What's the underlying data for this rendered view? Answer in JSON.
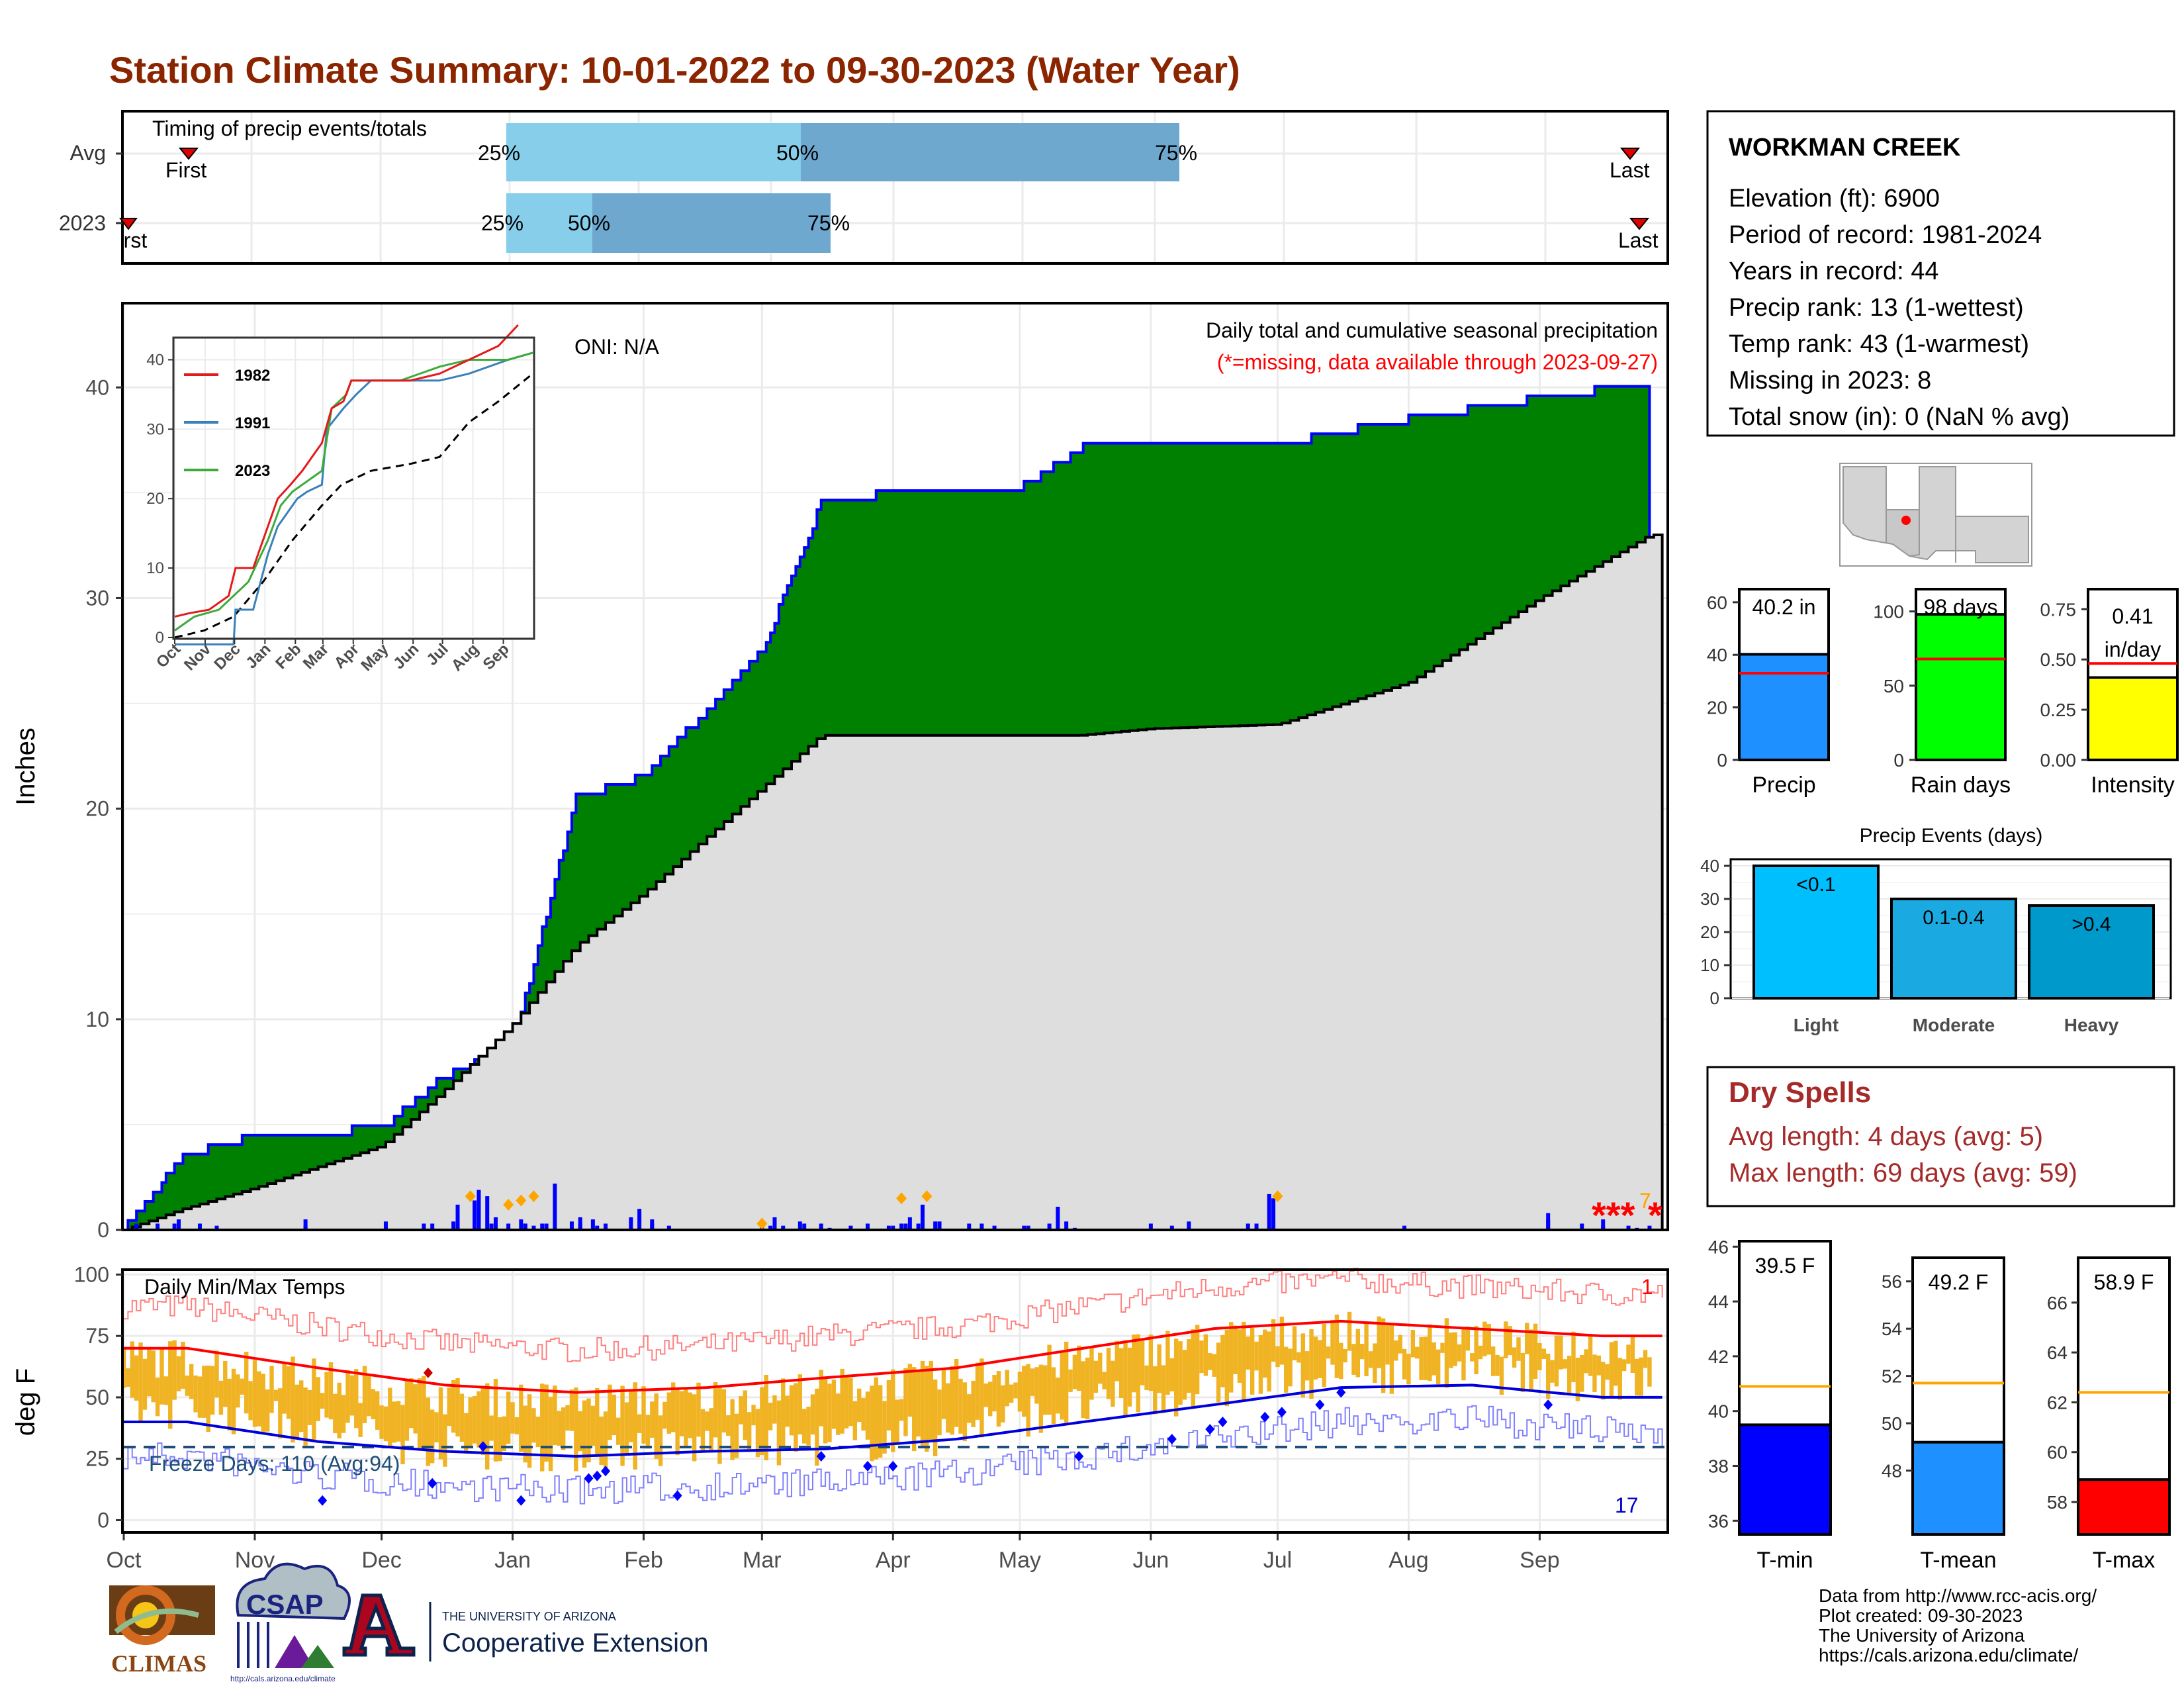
{
  "title": "Station Climate Summary: 10-01-2022 to 09-30-2023 (Water Year)",
  "timing": {
    "label": "Timing of precip events/totals",
    "rows": [
      {
        "name": "Avg",
        "p25": "25%",
        "p50": "50%",
        "p75": "75%",
        "first": "First",
        "last": "Last"
      },
      {
        "name": "2023",
        "p25": "25%",
        "p50": "50%",
        "p75": "75%",
        "first": "First",
        "last": "Last"
      }
    ]
  },
  "station": {
    "name": "WORKMAN CREEK",
    "lines": [
      "Elevation (ft): 6900",
      "Period of record: 1981-2024",
      "Years in record: 44",
      "Precip rank: 13 (1-wettest)",
      "Temp rank: 43 (1-warmest)",
      "Missing in 2023: 8",
      "Total snow (in): 0 (NaN % avg)"
    ]
  },
  "precip_panel": {
    "ylabel": "Inches",
    "oni": "ONI: N/A",
    "caption1": "Daily total and cumulative seasonal precipitation",
    "caption2": "(*=missing, data available through 2023-09-27)",
    "missing_marks": "***",
    "missing_count": "7",
    "yticks": [
      "0",
      "10",
      "20",
      "30",
      "40"
    ]
  },
  "inset": {
    "legend": [
      "1982",
      "1991",
      "2023"
    ],
    "colors": [
      "#e31a1c",
      "#3a80b9",
      "#3cab3c"
    ],
    "yticks": [
      "0",
      "10",
      "20",
      "30",
      "40"
    ],
    "xticks": [
      "Oct",
      "Nov",
      "Dec",
      "Jan",
      "Feb",
      "Mar",
      "Apr",
      "May",
      "Jun",
      "Jul",
      "Aug",
      "Sep"
    ]
  },
  "temp_panel": {
    "ylabel": "deg F",
    "label": "Daily Min/Max Temps",
    "freeze": "Freeze Days: 110 (Avg:94)",
    "count_hot": "1",
    "count_cold": "17",
    "yticks": [
      "0",
      "25",
      "50",
      "75",
      "100"
    ]
  },
  "months": [
    "Oct",
    "Nov",
    "Dec",
    "Jan",
    "Feb",
    "Mar",
    "Apr",
    "May",
    "Jun",
    "Jul",
    "Aug",
    "Sep"
  ],
  "bars_small": [
    {
      "name": "Precip",
      "label": "40.2 in",
      "value": 40.2,
      "avg": 33,
      "ymax": 65,
      "ticks": [
        "0",
        "20",
        "40",
        "60"
      ],
      "color": "#1e90ff"
    },
    {
      "name": "Rain days",
      "label": "98 days",
      "value": 98,
      "avg": 68,
      "ymax": 115,
      "ticks": [
        "0",
        "50",
        "100"
      ],
      "color": "#00ff00"
    },
    {
      "name": "Intensity",
      "label1": "0.41",
      "label2": "in/day",
      "value": 0.41,
      "avg": 0.48,
      "ymax": 0.85,
      "ticks": [
        "0.00",
        "0.25",
        "0.50",
        "0.75"
      ],
      "color": "#ffff00"
    }
  ],
  "events": {
    "title": "Precip Events (days)",
    "ticks": [
      "0",
      "10",
      "20",
      "30",
      "40"
    ],
    "bars": [
      {
        "name": "Light",
        "label": "<0.1",
        "value": 40,
        "color": "#00bfff"
      },
      {
        "name": "Moderate",
        "label": "0.1-0.4",
        "value": 30,
        "color": "#1aa9e0"
      },
      {
        "name": "Heavy",
        "label": ">0.4",
        "value": 28,
        "color": "#0099cc"
      }
    ]
  },
  "dry": {
    "title": "Dry Spells",
    "avg": "Avg length: 4 days (avg: 5)",
    "max": "Max length: 69 days (avg: 59)"
  },
  "temps_small": [
    {
      "name": "T-min",
      "label": "39.5 F",
      "value": 39.5,
      "avg": 40.9,
      "ymin": 35.5,
      "ymax": 46.2,
      "ticks": [
        "36",
        "38",
        "40",
        "42",
        "44",
        "46"
      ],
      "color": "#0000ff"
    },
    {
      "name": "T-mean",
      "label": "49.2 F",
      "value": 49.2,
      "avg": 51.7,
      "ymin": 45.3,
      "ymax": 57,
      "ticks": [
        "48",
        "50",
        "52",
        "54",
        "56"
      ],
      "color": "#1e90ff"
    },
    {
      "name": "T-max",
      "label": "58.9 F",
      "value": 58.9,
      "avg": 62.4,
      "ymin": 56.7,
      "ymax": 67.8,
      "ticks": [
        "58",
        "60",
        "62",
        "64",
        "66"
      ],
      "color": "#ff0000"
    }
  ],
  "footer": {
    "lines": [
      "Data from http://www.rcc-acis.org/",
      "Plot created: 09-30-2023",
      "The University of Arizona",
      "https://cals.arizona.edu/climate/"
    ]
  },
  "logos": {
    "climas": "CLIMAS",
    "csap": "CSAP",
    "csap_url": "http://cals.arizona.edu/climate",
    "ua_small": "THE UNIVERSITY OF ARIZONA",
    "ua_big": "Cooperative Extension"
  },
  "chart_data": [
    {
      "type": "area",
      "title": "Daily total and cumulative seasonal precipitation",
      "ylabel": "Inches",
      "ylim": [
        0,
        44
      ],
      "x": [
        "2022-10-01",
        "2022-10-15",
        "2022-11-01",
        "2022-12-01",
        "2022-12-15",
        "2023-01-01",
        "2023-01-16",
        "2023-02-01",
        "2023-02-15",
        "2023-03-01",
        "2023-03-15",
        "2023-04-01",
        "2023-05-01",
        "2023-05-16",
        "2023-06-01",
        "2023-07-01",
        "2023-08-01",
        "2023-09-01",
        "2023-09-27"
      ],
      "series": [
        {
          "name": "2023",
          "values": [
            0,
            3.5,
            4.5,
            4.8,
            7.2,
            8.8,
            20.5,
            21.5,
            24.5,
            27.5,
            34.5,
            35.0,
            35.2,
            37.2,
            37.2,
            37.3,
            38.5,
            39.5,
            40.2
          ]
        },
        {
          "name": "Avg",
          "values": [
            0,
            1.0,
            2.0,
            4.0,
            6.5,
            9.8,
            13.5,
            16.0,
            18.5,
            21.0,
            23.5,
            23.2,
            23.3,
            23.5,
            23.8,
            24.0,
            26.0,
            30.0,
            33.0
          ]
        }
      ]
    },
    {
      "type": "line",
      "title": "Daily Min/Max Temps",
      "ylabel": "deg F",
      "ylim": [
        -5,
        102
      ],
      "x": [
        "Oct",
        "Nov",
        "Dec",
        "Jan",
        "Feb",
        "Mar",
        "Apr",
        "May",
        "Jun",
        "Jul",
        "Aug",
        "Sep"
      ],
      "series": [
        {
          "name": "Avg max",
          "values": [
            70,
            62,
            55,
            52,
            54,
            58,
            62,
            70,
            78,
            81,
            78,
            75
          ]
        },
        {
          "name": "Avg min",
          "values": [
            40,
            32,
            28,
            26,
            28,
            29,
            33,
            40,
            47,
            54,
            55,
            50
          ]
        }
      ]
    }
  ]
}
